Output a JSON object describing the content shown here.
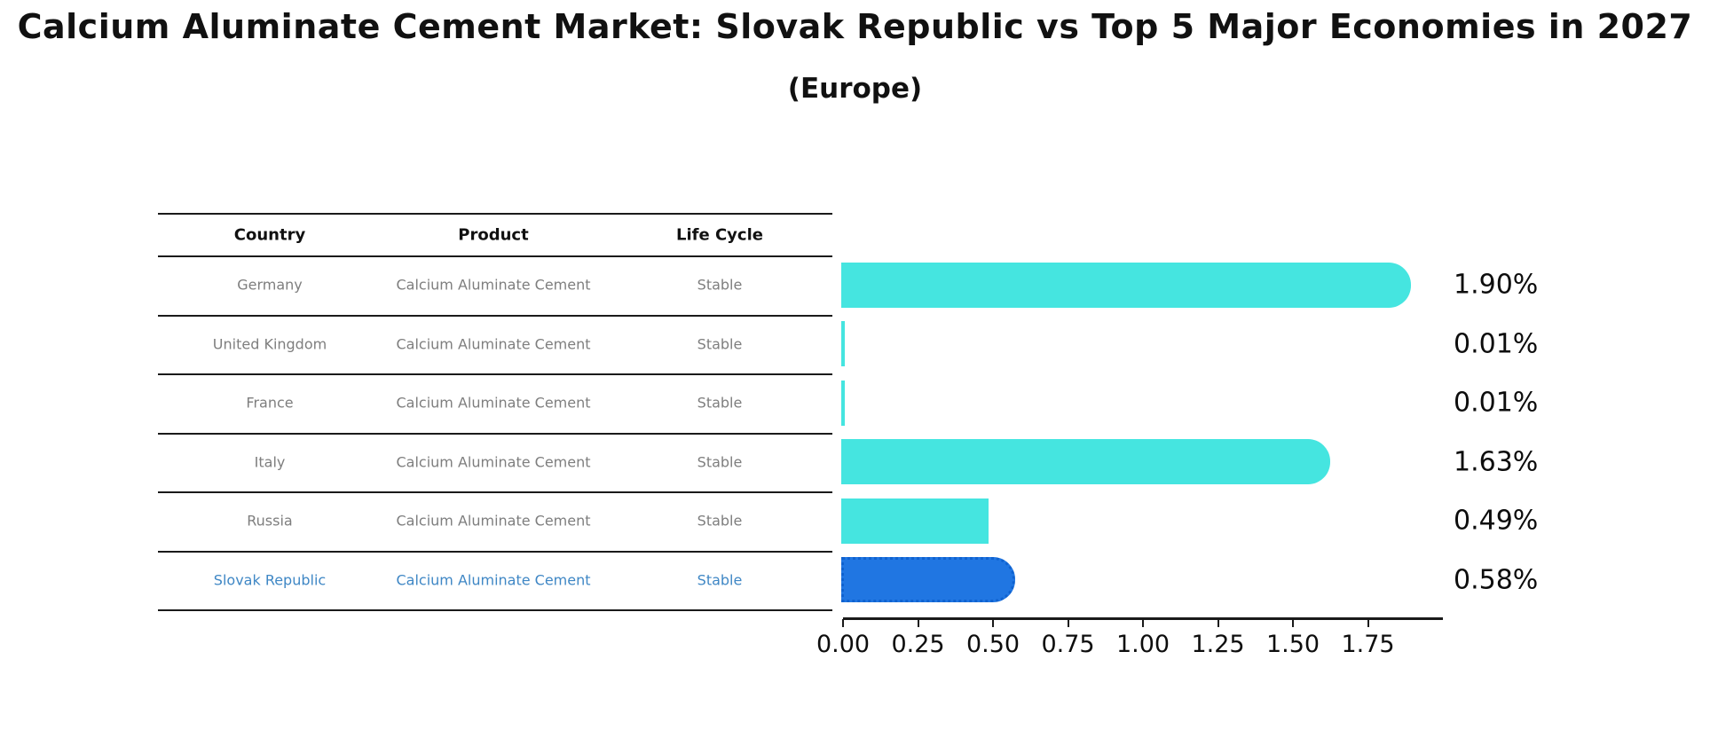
{
  "title": "Calcium Aluminate Cement Market: Slovak Republic vs Top 5 Major Economies in 2027",
  "subtitle": "(Europe)",
  "table": {
    "columns": [
      "Country",
      "Product",
      "Life Cycle"
    ],
    "rows": [
      {
        "country": "Germany",
        "product": "Calcium Aluminate Cement",
        "life_cycle": "Stable",
        "highlight": false
      },
      {
        "country": "United Kingdom",
        "product": "Calcium Aluminate Cement",
        "life_cycle": "Stable",
        "highlight": false
      },
      {
        "country": "France",
        "product": "Calcium Aluminate Cement",
        "life_cycle": "Stable",
        "highlight": false
      },
      {
        "country": "Italy",
        "product": "Calcium Aluminate Cement",
        "life_cycle": "Stable",
        "highlight": false
      },
      {
        "country": "Russia",
        "product": "Calcium Aluminate Cement",
        "life_cycle": "Stable",
        "highlight": false
      },
      {
        "country": "Slovak Republic",
        "product": "Calcium Aluminate Cement",
        "life_cycle": "Stable",
        "highlight": true
      }
    ]
  },
  "chart_data": {
    "type": "bar",
    "orientation": "horizontal",
    "title": "Calcium Aluminate Cement Market: Slovak Republic vs Top 5 Major Economies in 2027",
    "subtitle": "(Europe)",
    "categories": [
      "Germany",
      "United Kingdom",
      "France",
      "Italy",
      "Russia",
      "Slovak Republic"
    ],
    "values": [
      1.9,
      0.01,
      0.01,
      1.63,
      0.49,
      0.58
    ],
    "value_labels": [
      "1.90%",
      "0.01%",
      "0.01%",
      "1.63%",
      "0.49%",
      "0.58%"
    ],
    "x_tick_labels": [
      "0.00",
      "0.25",
      "0.50",
      "0.75",
      "1.00",
      "1.25",
      "1.50",
      "1.75"
    ],
    "xlim": [
      0,
      2.0
    ],
    "grid": false,
    "legend": null,
    "highlight_index": 5,
    "colors": {
      "bar": "#45e5e0",
      "highlight_bar": "#2076e2",
      "highlight_bar_edge": "#0f62d0",
      "highlight_text": "#3f87c5",
      "text": "#0d0d0d",
      "table_text": "#7e7e7e",
      "line": "#1a1a1a"
    }
  }
}
